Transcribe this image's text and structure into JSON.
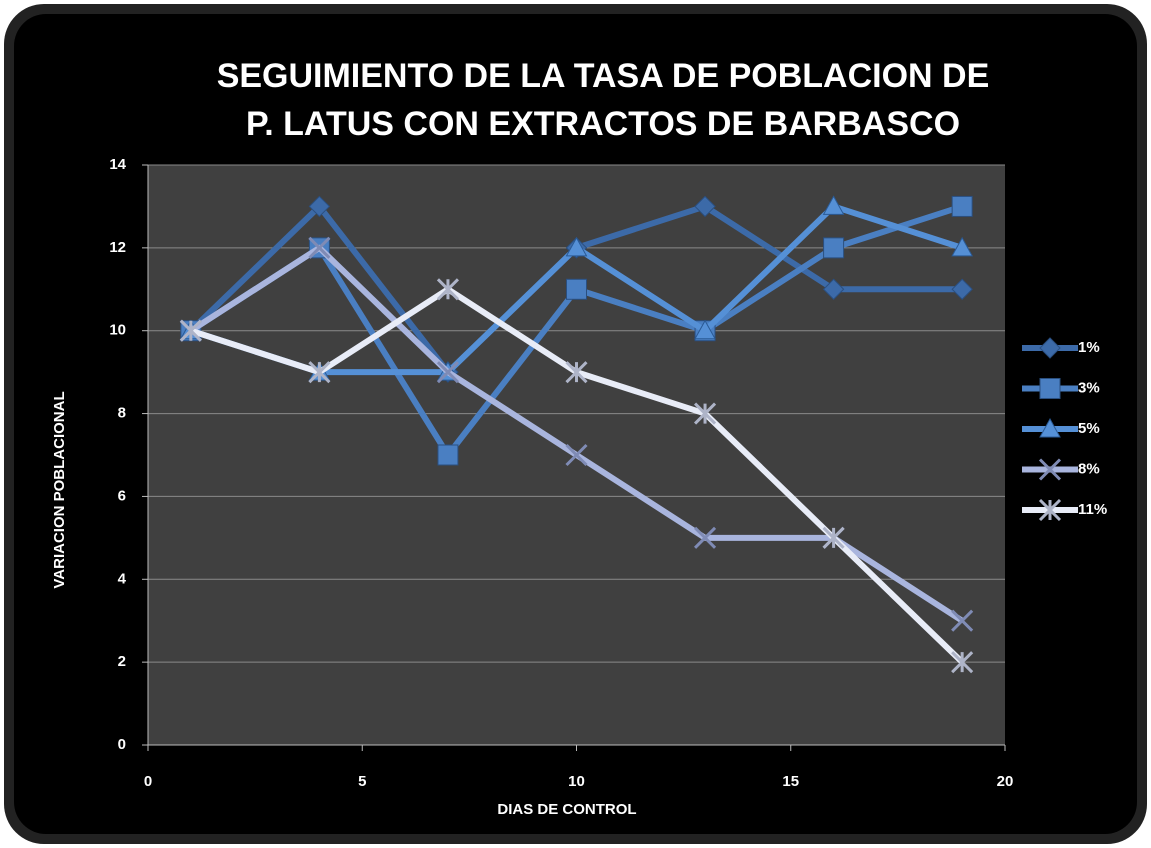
{
  "chart_data": {
    "type": "line",
    "title": [
      "SEGUIMIENTO DE LA TASA DE POBLACION DE",
      "P. LATUS CON EXTRACTOS DE BARBASCO"
    ],
    "x_label": "DIAS DE CONTROL",
    "y_label": "VARIACION POBLACIONAL",
    "x": [
      1,
      4,
      7,
      10,
      13,
      16,
      19
    ],
    "series": [
      {
        "name": "1%",
        "color": "#3c6aa8",
        "marker": "diamond",
        "values": [
          10,
          13,
          9,
          12,
          13,
          11,
          11
        ]
      },
      {
        "name": "3%",
        "color": "#4a7fc2",
        "marker": "square",
        "values": [
          10,
          12,
          7,
          11,
          10,
          12,
          13
        ]
      },
      {
        "name": "5%",
        "color": "#5590d6",
        "marker": "triangle",
        "values": [
          10,
          9,
          9,
          12,
          10,
          13,
          12
        ]
      },
      {
        "name": "8%",
        "color": "#a9b5de",
        "marker": "x",
        "values": [
          10,
          12,
          9,
          7,
          5,
          5,
          3
        ]
      },
      {
        "name": "11%",
        "color": "#e8ecf7",
        "marker": "star",
        "values": [
          10,
          9,
          11,
          9,
          8,
          5,
          2
        ]
      }
    ],
    "xlim": [
      0,
      20
    ],
    "xticks": [
      0,
      5,
      10,
      15,
      20
    ],
    "ylim": [
      0,
      14
    ],
    "yticks": [
      0,
      2,
      4,
      6,
      8,
      10,
      12,
      14
    ],
    "grid": true,
    "legend": "right"
  }
}
